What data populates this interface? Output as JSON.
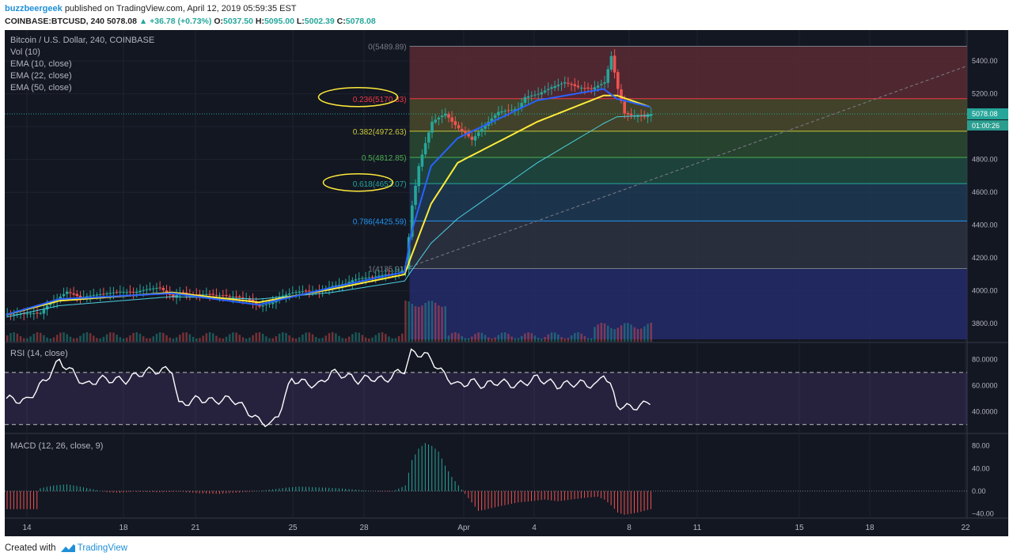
{
  "header": {
    "author": "buzzbeergeek",
    "published_text": "published on TradingView.com, April 12, 2019 05:59:35 EST",
    "symbol": "COINBASE:BTCUSD, 240",
    "last": "5078.08",
    "change": "▲ +36.78 (+0.73%)",
    "o_label": "O:",
    "o_value": "5037.50",
    "h_label": "H:",
    "h_value": "5095.00",
    "l_label": "L:",
    "l_value": "5002.39",
    "c_label": "C:",
    "c_value": "5078.08"
  },
  "legend": {
    "title": "Bitcoin / U.S. Dollar, 240, COINBASE",
    "vol": "Vol (10)",
    "ema10": "EMA (10, close)",
    "ema22": "EMA (22, close)",
    "ema50": "EMA (50, close)",
    "rsi": "RSI (14, close)",
    "macd": "MACD (12, 26, close, 9)"
  },
  "price_badge": {
    "price": "5078.08",
    "countdown": "01:00:26"
  },
  "fib_levels": [
    {
      "label": "0(5489.89)",
      "price": 5489.89,
      "color": "#787b86"
    },
    {
      "label": "0.236(5170.33)",
      "price": 5170.33,
      "color": "#f23645"
    },
    {
      "label": "0.382(4972.63)",
      "price": 4972.63,
      "color": "#c9c93b"
    },
    {
      "label": "0.5(4812.85)",
      "price": 4812.85,
      "color": "#4caf50"
    },
    {
      "label": "0.618(4653.07)",
      "price": 4653.07,
      "color": "#26a69a"
    },
    {
      "label": "0.786(4425.59)",
      "price": 4425.59,
      "color": "#2196f3"
    },
    {
      "label": "1(4135.91)",
      "price": 4135.91,
      "color": "#787b86"
    }
  ],
  "axes": {
    "price_ticks": [
      "5400.00",
      "5200.00",
      "5000.00",
      "4800.00",
      "4600.00",
      "4400.00",
      "4200.00",
      "4000.00",
      "3800.00"
    ],
    "rsi_ticks": [
      "80.0000",
      "60.0000",
      "40.0000"
    ],
    "macd_ticks": [
      "80.00",
      "40.00",
      "0.00",
      "−40.00"
    ],
    "time_labels": [
      "14",
      "18",
      "21",
      "25",
      "28",
      "Apr",
      "4",
      "8",
      "11",
      "15",
      "18",
      "22"
    ]
  },
  "footer": {
    "created_with": "Created with",
    "brand": "TradingView"
  },
  "colors": {
    "bg": "#131722",
    "up": "#26a69a",
    "down": "#ef5350",
    "ema10": "#2962ff",
    "ema22": "#ffeb3b",
    "ema50": "#4dd0e1",
    "annotation": "#ffeb3b"
  },
  "chart_data": {
    "type": "candlestick",
    "title": "Bitcoin / U.S. Dollar, 240, COINBASE",
    "x_range": [
      "Mar 12",
      "Apr 12"
    ],
    "price_range": [
      3700,
      5550
    ],
    "price_series": [
      [
        0,
        3855
      ],
      [
        2,
        3860
      ],
      [
        5,
        3865
      ],
      [
        6,
        3910
      ],
      [
        8,
        3965
      ],
      [
        9,
        3995
      ],
      [
        11,
        3960
      ],
      [
        13,
        3975
      ],
      [
        15,
        3985
      ],
      [
        17,
        3995
      ],
      [
        19,
        3990
      ],
      [
        21,
        4010
      ],
      [
        23,
        4020
      ],
      [
        25,
        3960
      ],
      [
        26,
        3990
      ],
      [
        28,
        3975
      ],
      [
        30,
        3980
      ],
      [
        34,
        3965
      ],
      [
        36,
        3955
      ],
      [
        38,
        3905
      ],
      [
        40,
        3930
      ],
      [
        41,
        3965
      ],
      [
        43,
        3990
      ],
      [
        45,
        4000
      ],
      [
        47,
        3995
      ],
      [
        49,
        4030
      ],
      [
        51,
        4045
      ],
      [
        52,
        4065
      ],
      [
        53,
        4075
      ],
      [
        55,
        4085
      ],
      [
        57,
        4100
      ],
      [
        59,
        4110
      ],
      [
        60,
        4135
      ],
      [
        61,
        4520
      ],
      [
        62,
        4760
      ],
      [
        63,
        4900
      ],
      [
        64,
        5030
      ],
      [
        66,
        5080
      ],
      [
        67,
        5030
      ],
      [
        68,
        4990
      ],
      [
        69,
        4960
      ],
      [
        70,
        4920
      ],
      [
        72,
        5010
      ],
      [
        74,
        5090
      ],
      [
        77,
        5110
      ],
      [
        78,
        5180
      ],
      [
        80,
        5200
      ],
      [
        82,
        5240
      ],
      [
        84,
        5270
      ],
      [
        86,
        5240
      ],
      [
        88,
        5230
      ],
      [
        90,
        5270
      ],
      [
        91,
        5430
      ],
      [
        92,
        5230
      ],
      [
        93,
        5080
      ],
      [
        94,
        5070
      ],
      [
        96,
        5060
      ],
      [
        97,
        5078
      ]
    ],
    "ema10_anchors": [
      [
        0,
        3855
      ],
      [
        8,
        3950
      ],
      [
        25,
        3985
      ],
      [
        38,
        3915
      ],
      [
        49,
        4020
      ],
      [
        60,
        4115
      ],
      [
        61,
        4350
      ],
      [
        64,
        4760
      ],
      [
        68,
        4930
      ],
      [
        80,
        5160
      ],
      [
        90,
        5230
      ],
      [
        92,
        5170
      ],
      [
        97,
        5120
      ]
    ],
    "ema22_anchors": [
      [
        0,
        3855
      ],
      [
        8,
        3940
      ],
      [
        25,
        3990
      ],
      [
        38,
        3930
      ],
      [
        49,
        4010
      ],
      [
        60,
        4100
      ],
      [
        61,
        4210
      ],
      [
        64,
        4530
      ],
      [
        68,
        4780
      ],
      [
        80,
        5030
      ],
      [
        90,
        5190
      ],
      [
        92,
        5190
      ],
      [
        97,
        5120
      ]
    ],
    "ema50_anchors": [
      [
        0,
        3840
      ],
      [
        8,
        3910
      ],
      [
        25,
        3965
      ],
      [
        38,
        3950
      ],
      [
        49,
        3990
      ],
      [
        60,
        4060
      ],
      [
        61,
        4120
      ],
      [
        64,
        4290
      ],
      [
        68,
        4440
      ],
      [
        80,
        4780
      ],
      [
        90,
        5020
      ],
      [
        92,
        5060
      ],
      [
        97,
        5070
      ]
    ],
    "rsi_range": [
      25,
      90
    ],
    "rsi_series": [
      [
        0,
        50
      ],
      [
        3,
        48
      ],
      [
        6,
        65
      ],
      [
        8,
        79
      ],
      [
        10,
        70
      ],
      [
        12,
        60
      ],
      [
        14,
        65
      ],
      [
        18,
        64
      ],
      [
        21,
        71
      ],
      [
        25,
        72
      ],
      [
        26,
        45
      ],
      [
        29,
        50
      ],
      [
        31,
        48
      ],
      [
        34,
        50
      ],
      [
        36,
        42
      ],
      [
        38,
        33
      ],
      [
        40,
        30
      ],
      [
        41,
        38
      ],
      [
        43,
        65
      ],
      [
        45,
        62
      ],
      [
        47,
        60
      ],
      [
        49,
        70
      ],
      [
        51,
        68
      ],
      [
        53,
        64
      ],
      [
        55,
        66
      ],
      [
        57,
        64
      ],
      [
        59,
        70
      ],
      [
        60,
        72
      ],
      [
        61,
        85
      ],
      [
        63,
        84
      ],
      [
        64,
        80
      ],
      [
        66,
        68
      ],
      [
        68,
        60
      ],
      [
        70,
        63
      ],
      [
        72,
        60
      ],
      [
        74,
        63
      ],
      [
        77,
        60
      ],
      [
        80,
        66
      ],
      [
        83,
        60
      ],
      [
        86,
        62
      ],
      [
        89,
        60
      ],
      [
        90,
        70
      ],
      [
        91,
        60
      ],
      [
        92,
        45
      ],
      [
        94,
        43
      ],
      [
        96,
        45
      ],
      [
        97,
        48
      ]
    ],
    "rsi_levels": [
      70,
      30
    ],
    "macd_range": [
      -45,
      95
    ],
    "macd_hist": [
      [
        5,
        5
      ],
      [
        7,
        10
      ],
      [
        9,
        12
      ],
      [
        11,
        8
      ],
      [
        13,
        3
      ],
      [
        15,
        -2
      ],
      [
        17,
        -3
      ],
      [
        19,
        -1
      ],
      [
        23,
        -2
      ],
      [
        26,
        -1
      ],
      [
        29,
        -4
      ],
      [
        32,
        -5
      ],
      [
        34,
        -3
      ],
      [
        37,
        -1
      ],
      [
        40,
        3
      ],
      [
        42,
        6
      ],
      [
        44,
        8
      ],
      [
        46,
        7
      ],
      [
        48,
        6
      ],
      [
        50,
        5
      ],
      [
        52,
        3
      ],
      [
        54,
        1
      ],
      [
        56,
        -1
      ],
      [
        58,
        -1
      ],
      [
        60,
        10
      ],
      [
        61,
        55
      ],
      [
        62,
        75
      ],
      [
        63,
        85
      ],
      [
        64,
        80
      ],
      [
        65,
        70
      ],
      [
        66,
        45
      ],
      [
        67,
        25
      ],
      [
        68,
        10
      ],
      [
        69,
        -5
      ],
      [
        70,
        -20
      ],
      [
        71,
        -35
      ],
      [
        72,
        -33
      ],
      [
        73,
        -30
      ],
      [
        75,
        -25
      ],
      [
        77,
        -20
      ],
      [
        79,
        -18
      ],
      [
        81,
        -15
      ],
      [
        83,
        -18
      ],
      [
        85,
        -15
      ],
      [
        87,
        -12
      ],
      [
        89,
        -10
      ],
      [
        90,
        -15
      ],
      [
        91,
        -25
      ],
      [
        92,
        -38
      ],
      [
        93,
        -42
      ],
      [
        94,
        -40
      ],
      [
        95,
        -38
      ],
      [
        96,
        -35
      ],
      [
        97,
        -32
      ]
    ]
  }
}
